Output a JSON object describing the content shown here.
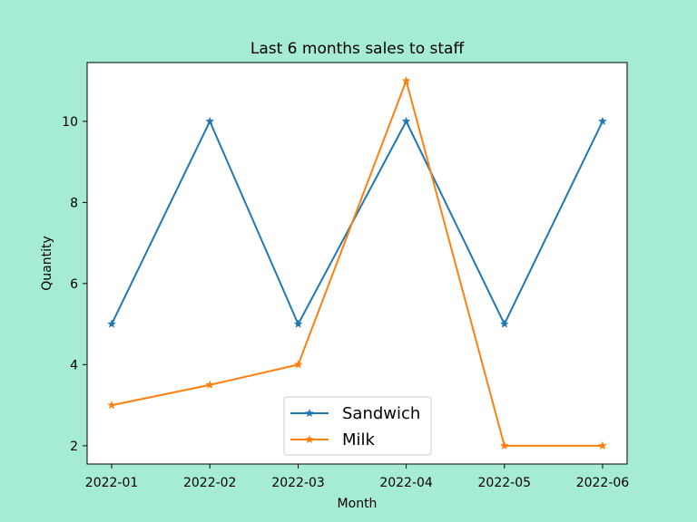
{
  "chart_data": {
    "type": "line",
    "title": "Last 6 months sales to staff",
    "xlabel": "Month",
    "ylabel": "Quantity",
    "categories": [
      "2022-01",
      "2022-02",
      "2022-03",
      "2022-04",
      "2022-05",
      "2022-06"
    ],
    "ylim": [
      1.55,
      11.45
    ],
    "yticks": [
      2,
      4,
      6,
      8,
      10
    ],
    "grid": false,
    "legend_position": "lower-center",
    "marker": "star",
    "series": [
      {
        "name": "Sandwich",
        "color": "#1f77b4",
        "values": [
          5,
          10,
          5,
          10,
          5,
          10
        ]
      },
      {
        "name": "Milk",
        "color": "#ff7f0e",
        "values": [
          3,
          3.5,
          4,
          11,
          2,
          2
        ]
      }
    ],
    "x_positions": [
      0,
      1,
      1.9,
      3,
      4,
      5
    ]
  }
}
